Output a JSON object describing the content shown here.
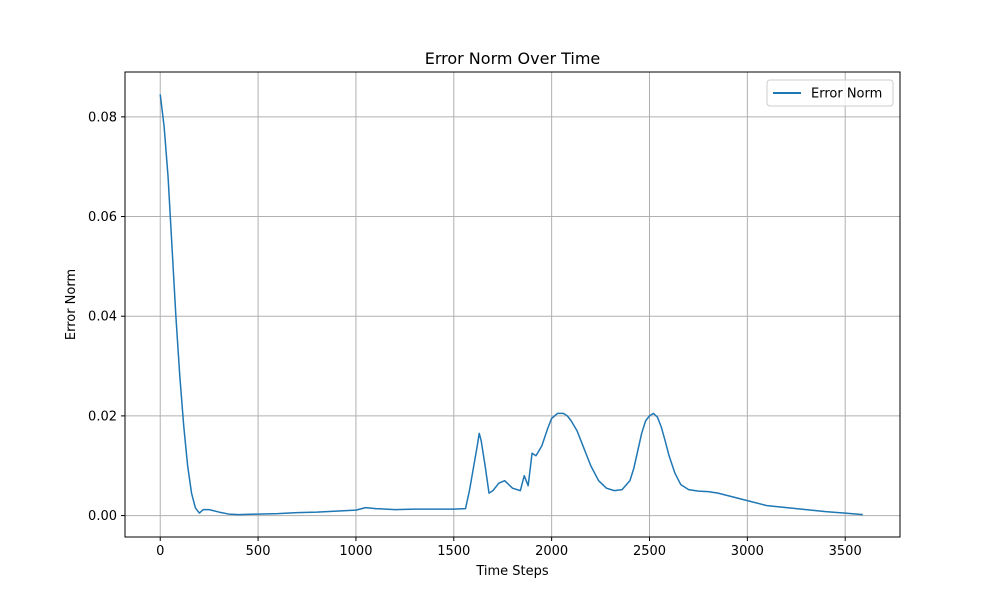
{
  "chart_data": {
    "type": "line",
    "title": "Error Norm Over Time",
    "xlabel": "Time Steps",
    "ylabel": "Error Norm",
    "xlim": [
      -180,
      3780
    ],
    "ylim": [
      -0.0043,
      0.089
    ],
    "xticks": [
      0,
      500,
      1000,
      1500,
      2000,
      2500,
      3000,
      3500
    ],
    "yticks": [
      0.0,
      0.02,
      0.04,
      0.06,
      0.08
    ],
    "ytick_labels": [
      "0.00",
      "0.02",
      "0.04",
      "0.06",
      "0.08"
    ],
    "grid": true,
    "legend_position": "top-right",
    "series": [
      {
        "name": "Error Norm",
        "color": "#1f77b4",
        "x": [
          0,
          20,
          40,
          60,
          80,
          100,
          120,
          140,
          160,
          180,
          200,
          220,
          250,
          300,
          350,
          400,
          500,
          600,
          700,
          800,
          900,
          1000,
          1050,
          1100,
          1200,
          1300,
          1400,
          1500,
          1560,
          1580,
          1600,
          1620,
          1630,
          1640,
          1660,
          1680,
          1700,
          1730,
          1760,
          1800,
          1840,
          1860,
          1880,
          1900,
          1920,
          1950,
          1980,
          2000,
          2030,
          2060,
          2080,
          2100,
          2130,
          2160,
          2200,
          2240,
          2280,
          2320,
          2360,
          2400,
          2420,
          2440,
          2460,
          2480,
          2500,
          2520,
          2540,
          2560,
          2580,
          2600,
          2630,
          2660,
          2700,
          2750,
          2800,
          2850,
          2900,
          2950,
          3000,
          3100,
          3200,
          3300,
          3400,
          3500,
          3590
        ],
        "y": [
          0.0845,
          0.078,
          0.068,
          0.054,
          0.04,
          0.028,
          0.018,
          0.01,
          0.0045,
          0.0015,
          0.0005,
          0.0012,
          0.0012,
          0.0007,
          0.0003,
          0.0002,
          0.0003,
          0.0004,
          0.0006,
          0.0007,
          0.0009,
          0.0011,
          0.0016,
          0.0014,
          0.0012,
          0.0013,
          0.0013,
          0.0013,
          0.0014,
          0.005,
          0.0095,
          0.014,
          0.0165,
          0.015,
          0.01,
          0.0045,
          0.005,
          0.0065,
          0.007,
          0.0055,
          0.005,
          0.008,
          0.006,
          0.0125,
          0.012,
          0.014,
          0.0175,
          0.0195,
          0.0205,
          0.0205,
          0.02,
          0.019,
          0.017,
          0.014,
          0.01,
          0.007,
          0.0055,
          0.005,
          0.0052,
          0.007,
          0.0095,
          0.013,
          0.0165,
          0.019,
          0.02,
          0.0205,
          0.0198,
          0.0178,
          0.015,
          0.012,
          0.0085,
          0.0062,
          0.0052,
          0.0049,
          0.0048,
          0.0045,
          0.004,
          0.0035,
          0.003,
          0.002,
          0.0016,
          0.0012,
          0.0008,
          0.0005,
          0.0002
        ]
      }
    ]
  }
}
